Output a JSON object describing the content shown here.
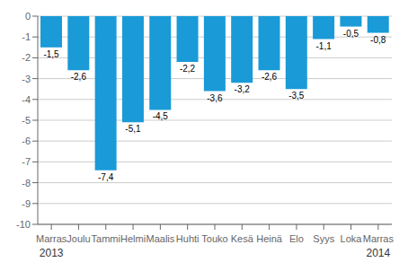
{
  "chart_data": {
    "type": "bar",
    "categories": [
      "Marras",
      "Joulu",
      "Tammi",
      "Helmi",
      "Maalis",
      "Huhti",
      "Touko",
      "Kesä",
      "Heinä",
      "Elo",
      "Syys",
      "Loka",
      "Marras"
    ],
    "values": [
      -1.5,
      -2.6,
      -7.4,
      -5.1,
      -4.5,
      -2.2,
      -3.6,
      -3.2,
      -2.6,
      -3.5,
      -1.1,
      -0.5,
      -0.8
    ],
    "value_labels": [
      "-1,5",
      "-2,6",
      "-7,4",
      "-5,1",
      "-4,5",
      "-2,2",
      "-3,6",
      "-3,2",
      "-2,6",
      "-3,5",
      "-1,1",
      "-0,5",
      "-0,8"
    ],
    "data_labels": true,
    "color": "#1a9ad7",
    "ylim": [
      -10,
      0
    ],
    "yticks": [
      0,
      -1,
      -2,
      -3,
      -4,
      -5,
      -6,
      -7,
      -8,
      -9,
      -10
    ],
    "grid": true,
    "annotations": [
      {
        "text": "2013",
        "x": 0
      },
      {
        "text": "2014",
        "x": 12
      }
    ]
  }
}
